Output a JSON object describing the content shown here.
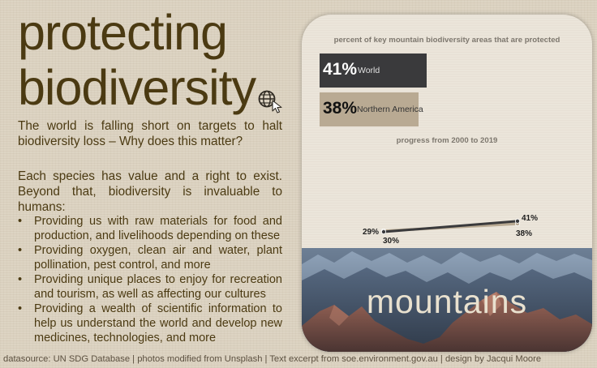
{
  "title": {
    "line1": "protecting",
    "line2": "biodiversity"
  },
  "intro": "The world is falling short on targets to halt biodiversity loss – Why does this matter?",
  "value_text": "Each species has value and a right to exist. Beyond that, biodiversity is invaluable to humans:",
  "bullets": [
    "Providing us with raw materials for food and production, and livelihoods depending on these",
    "Providing oxygen, clean air and water, plant pollination, pest control, and more",
    "Providing unique places to enjoy for recreation and tourism, as well as affecting our cultures",
    "Providing a wealth of scientific information to help us understand the world and develop new medicines, technologies, and more"
  ],
  "footer": "datasource: UN SDG Database | photos modified from Unsplash | Text excerpt from soe.environment.gov.au | design by Jacqui Moore",
  "panel": {
    "header": "percent of key mountain biodiversity areas that are protected",
    "progress_title": "progress from 2000 to 2019",
    "label": "mountains"
  },
  "colors": {
    "world": "#3a3a3c",
    "northern_america": "#b9aa93",
    "title_text": "#4b3a12"
  },
  "chart_data": [
    {
      "type": "bar",
      "title": "percent of key mountain biodiversity areas that are protected",
      "categories": [
        "World",
        "Northern America"
      ],
      "values": [
        41,
        38
      ],
      "value_labels": [
        "41%",
        "38%"
      ],
      "unit": "%"
    },
    {
      "type": "line",
      "title": "progress from 2000 to 2019",
      "x": [
        2000,
        2019
      ],
      "series": [
        {
          "name": "World",
          "values": [
            29,
            41
          ],
          "labels": [
            "29%",
            "41%"
          ]
        },
        {
          "name": "Northern America",
          "values": [
            30,
            38
          ],
          "labels": [
            "30%",
            "38%"
          ]
        }
      ]
    }
  ]
}
